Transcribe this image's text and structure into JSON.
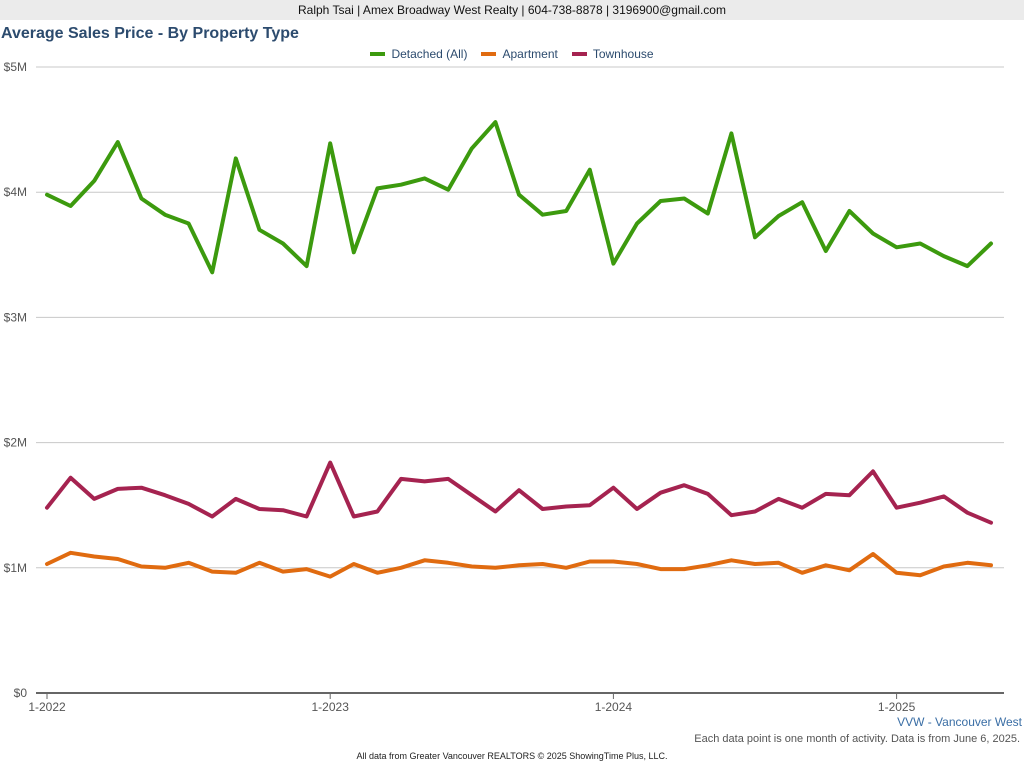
{
  "banner": "Ralph Tsai | Amex Broadway West Realty | 604-738-8878 | 3196900@gmail.com",
  "area_label": "VVW - Vancouver West",
  "note": "Each data point is one month of activity. Data is from June 6, 2025.",
  "footer": "All data from Greater Vancouver REALTORS © 2025 ShowingTime Plus, LLC.",
  "chart_data": {
    "type": "line",
    "title": "Average Sales Price - By Property Type",
    "xlabel": "",
    "ylabel": "",
    "ylim": [
      0,
      5000000
    ],
    "y_ticks": [
      "$0",
      "$1M",
      "$2M",
      "$3M",
      "$4M",
      "$5M"
    ],
    "x_ticks": [
      {
        "label": "1-2022",
        "index": 0
      },
      {
        "label": "1-2023",
        "index": 12
      },
      {
        "label": "1-2024",
        "index": 24
      },
      {
        "label": "1-2025",
        "index": 36
      }
    ],
    "x": [
      "2022-01",
      "2022-02",
      "2022-03",
      "2022-04",
      "2022-05",
      "2022-06",
      "2022-07",
      "2022-08",
      "2022-09",
      "2022-10",
      "2022-11",
      "2022-12",
      "2023-01",
      "2023-02",
      "2023-03",
      "2023-04",
      "2023-05",
      "2023-06",
      "2023-07",
      "2023-08",
      "2023-09",
      "2023-10",
      "2023-11",
      "2023-12",
      "2024-01",
      "2024-02",
      "2024-03",
      "2024-04",
      "2024-05",
      "2024-06",
      "2024-07",
      "2024-08",
      "2024-09",
      "2024-10",
      "2024-11",
      "2024-12",
      "2025-01",
      "2025-02",
      "2025-03",
      "2025-04",
      "2025-05"
    ],
    "grid": true,
    "legend_position": "top",
    "series": [
      {
        "name": "Detached (All)",
        "color": "#3c9a0e",
        "values": [
          3980000,
          3890000,
          4090000,
          4400000,
          3950000,
          3820000,
          3750000,
          3360000,
          4270000,
          3700000,
          3590000,
          3410000,
          4390000,
          3520000,
          4030000,
          4060000,
          4110000,
          4020000,
          4350000,
          4560000,
          3980000,
          3820000,
          3850000,
          4180000,
          3430000,
          3750000,
          3930000,
          3950000,
          3830000,
          4470000,
          3640000,
          3810000,
          3920000,
          3530000,
          3850000,
          3670000,
          3560000,
          3590000,
          3490000,
          3410000,
          3590000
        ]
      },
      {
        "name": "Apartment",
        "color": "#e06b10",
        "values": [
          1030000,
          1120000,
          1090000,
          1070000,
          1010000,
          1000000,
          1040000,
          970000,
          960000,
          1040000,
          970000,
          990000,
          930000,
          1030000,
          960000,
          1000000,
          1060000,
          1040000,
          1010000,
          1000000,
          1020000,
          1030000,
          1000000,
          1050000,
          1050000,
          1030000,
          990000,
          990000,
          1020000,
          1060000,
          1030000,
          1040000,
          960000,
          1020000,
          980000,
          1110000,
          960000,
          940000,
          1010000,
          1040000,
          1020000
        ]
      },
      {
        "name": "Townhouse",
        "color": "#a52350",
        "values": [
          1480000,
          1720000,
          1550000,
          1630000,
          1640000,
          1580000,
          1510000,
          1410000,
          1550000,
          1470000,
          1460000,
          1410000,
          1840000,
          1410000,
          1450000,
          1710000,
          1690000,
          1710000,
          1580000,
          1450000,
          1620000,
          1470000,
          1490000,
          1500000,
          1640000,
          1470000,
          1600000,
          1660000,
          1590000,
          1420000,
          1450000,
          1550000,
          1480000,
          1590000,
          1580000,
          1770000,
          1480000,
          1520000,
          1570000,
          1440000,
          1360000
        ]
      }
    ]
  }
}
